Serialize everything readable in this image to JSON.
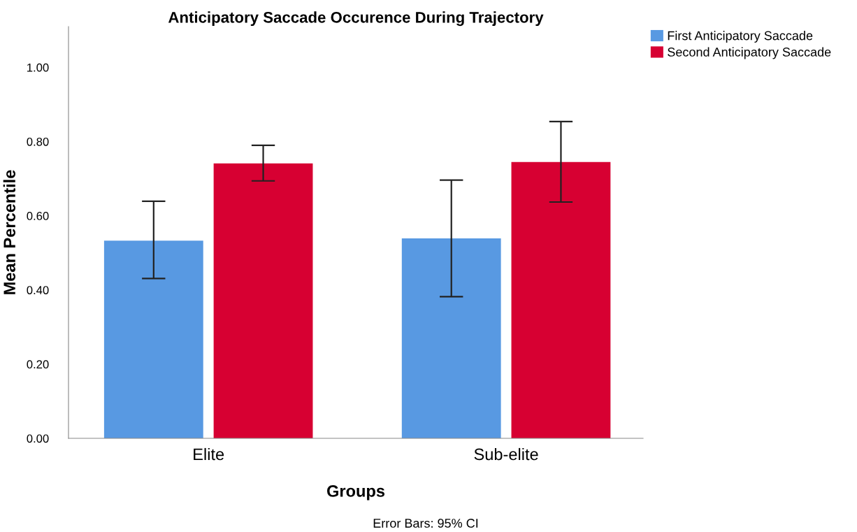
{
  "chart_data": {
    "type": "bar",
    "title": "Anticipatory Saccade Occurence During Trajectory",
    "xlabel": "Groups",
    "ylabel": "Mean Percentile",
    "categories": [
      "Elite",
      "Sub-elite"
    ],
    "series": [
      {
        "name": "First Anticipatory Saccade",
        "color": "#5899e2",
        "values": [
          0.533,
          0.539
        ],
        "errors": [
          [
            0.431,
            0.639
          ],
          [
            0.382,
            0.696
          ]
        ]
      },
      {
        "name": "Second Anticipatory Saccade",
        "color": "#d70032",
        "values": [
          0.741,
          0.745
        ],
        "errors": [
          [
            0.694,
            0.79
          ],
          [
            0.637,
            0.854
          ]
        ]
      }
    ],
    "ylim": [
      0,
      1.11
    ],
    "yticks": [
      {
        "value": 0,
        "label": "0.00"
      },
      {
        "value": 0.2,
        "label": "0.20"
      },
      {
        "value": 0.4,
        "label": "0.40"
      },
      {
        "value": 0.6,
        "label": "0.60"
      },
      {
        "value": 0.8,
        "label": "0.80"
      },
      {
        "value": 1.0,
        "label": "1.00"
      }
    ],
    "grid": false,
    "legend": "top right",
    "annotations": [
      "Error Bars: 95% CI"
    ]
  }
}
